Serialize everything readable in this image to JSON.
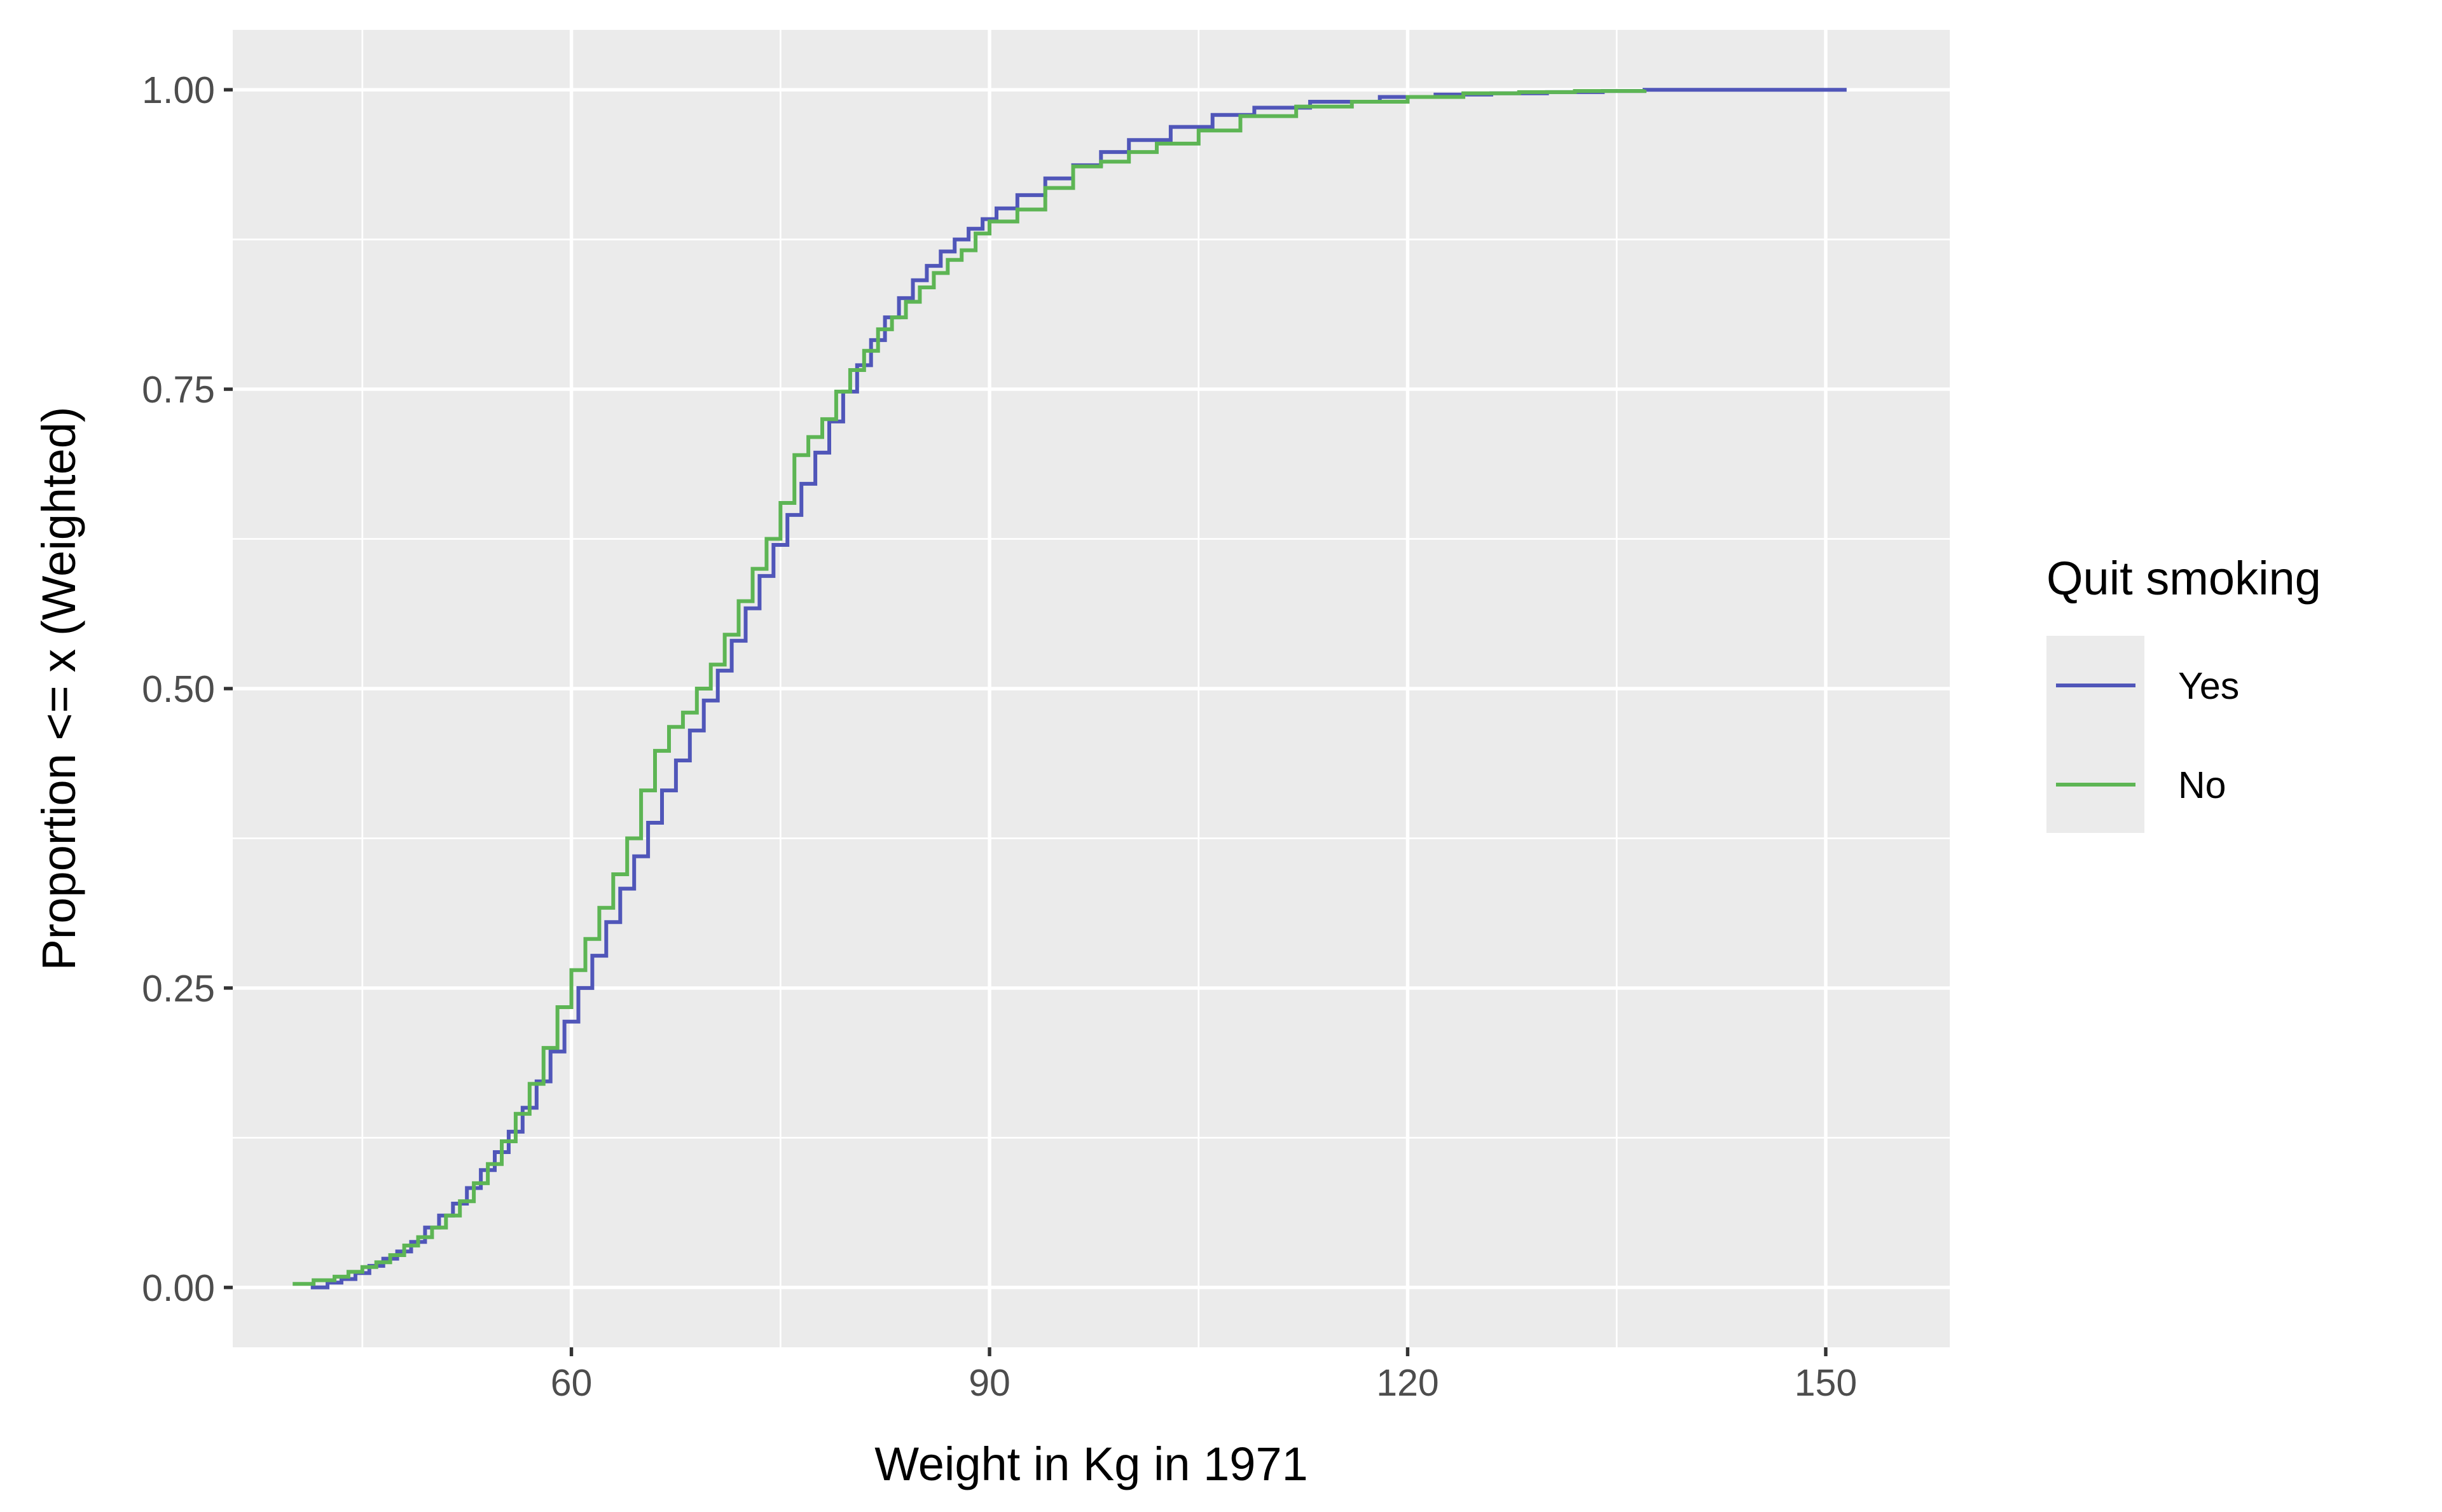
{
  "chart_data": {
    "type": "line",
    "subtype": "step-ecdf",
    "xlabel": "Weight in Kg in 1971",
    "ylabel": "Proportion <= x (Weighted)",
    "xlim": [
      35.7,
      158.9
    ],
    "ylim": [
      -0.05,
      1.05
    ],
    "xticks": [
      60,
      90,
      120,
      150
    ],
    "xtick_labels": [
      "60",
      "90",
      "120",
      "150"
    ],
    "xminor": [
      45,
      75,
      105,
      135
    ],
    "yticks": [
      0,
      0.25,
      0.5,
      0.75,
      1
    ],
    "ytick_labels": [
      "0.00",
      "0.25",
      "0.50",
      "0.75",
      "1.00"
    ],
    "yminor": [
      0.125,
      0.375,
      0.625,
      0.875
    ],
    "grid": true,
    "background": "#ebebeb",
    "legend": {
      "title": "Quit smoking",
      "position": "right"
    },
    "series": [
      {
        "name": "Yes",
        "color": "#5056b9",
        "x": [
          41.3,
          42.5,
          43.5,
          44.5,
          45.5,
          46.5,
          47.5,
          48.5,
          49.5,
          50.5,
          51.5,
          52.5,
          53.5,
          54.5,
          55.5,
          56.5,
          57.5,
          58.5,
          59.5,
          60.5,
          61.5,
          62.5,
          63.5,
          64.5,
          65.5,
          66.5,
          67.5,
          68.5,
          69.5,
          70.5,
          71.5,
          72.5,
          73.5,
          74.5,
          75.5,
          76.5,
          77.5,
          78.5,
          79.5,
          80.5,
          81.5,
          82.5,
          83.5,
          84.5,
          85.5,
          86.5,
          87.5,
          88.5,
          89.5,
          90.5,
          92,
          94,
          96,
          98,
          100,
          103,
          106,
          109,
          113,
          118,
          122,
          126,
          130,
          134,
          137,
          140,
          145,
          151.5
        ],
        "y": [
          0.0,
          0.004,
          0.007,
          0.012,
          0.018,
          0.024,
          0.03,
          0.038,
          0.05,
          0.06,
          0.07,
          0.083,
          0.098,
          0.113,
          0.13,
          0.15,
          0.172,
          0.197,
          0.222,
          0.25,
          0.277,
          0.305,
          0.333,
          0.36,
          0.388,
          0.415,
          0.44,
          0.465,
          0.49,
          0.515,
          0.54,
          0.567,
          0.594,
          0.62,
          0.645,
          0.671,
          0.697,
          0.723,
          0.748,
          0.77,
          0.791,
          0.81,
          0.826,
          0.841,
          0.853,
          0.865,
          0.875,
          0.884,
          0.892,
          0.901,
          0.912,
          0.926,
          0.937,
          0.948,
          0.958,
          0.969,
          0.979,
          0.985,
          0.99,
          0.994,
          0.996,
          0.997,
          0.998,
          0.999,
          1.0,
          1.0,
          1.0,
          1.0
        ]
      },
      {
        "name": "No",
        "color": "#5db554",
        "x": [
          40,
          41.5,
          43,
          44,
          45,
          46,
          47,
          48,
          49,
          50,
          51,
          52,
          53,
          54,
          55,
          56,
          57,
          58,
          59,
          60,
          61,
          62,
          63,
          64,
          65,
          66,
          67,
          68,
          69,
          70,
          71,
          72,
          73,
          74,
          75,
          76,
          77,
          78,
          79,
          80,
          81,
          82,
          83,
          84,
          85,
          86,
          87,
          88,
          89,
          90,
          92,
          94,
          96,
          98,
          100,
          102,
          105,
          108,
          112,
          116,
          120,
          124,
          128,
          132,
          137
        ],
        "y": [
          0.003,
          0.006,
          0.009,
          0.013,
          0.017,
          0.021,
          0.027,
          0.035,
          0.042,
          0.05,
          0.06,
          0.072,
          0.087,
          0.103,
          0.122,
          0.145,
          0.17,
          0.2,
          0.234,
          0.265,
          0.291,
          0.317,
          0.345,
          0.375,
          0.415,
          0.448,
          0.468,
          0.48,
          0.5,
          0.52,
          0.545,
          0.573,
          0.6,
          0.625,
          0.655,
          0.695,
          0.71,
          0.725,
          0.748,
          0.766,
          0.782,
          0.8,
          0.81,
          0.823,
          0.835,
          0.847,
          0.858,
          0.866,
          0.88,
          0.89,
          0.9,
          0.918,
          0.936,
          0.94,
          0.948,
          0.955,
          0.966,
          0.978,
          0.986,
          0.99,
          0.994,
          0.997,
          0.998,
          0.999,
          1.0
        ]
      }
    ]
  }
}
